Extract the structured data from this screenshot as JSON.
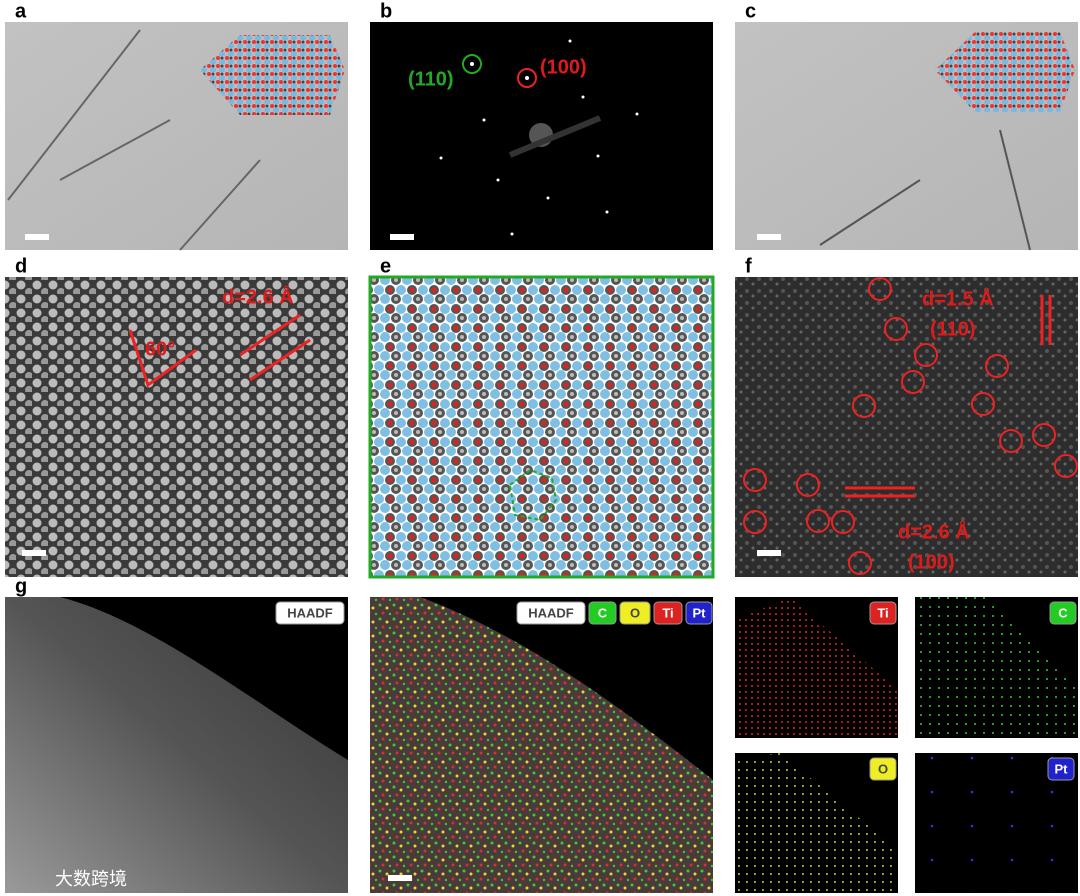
{
  "panel_labels": [
    "a",
    "b",
    "c",
    "d",
    "e",
    "f",
    "g"
  ],
  "panel_b": {
    "spot_1": "(110)",
    "spot_2": "(100)"
  },
  "panel_d": {
    "angle": "60°",
    "spacing": "d=2.6 Å"
  },
  "panel_f": {
    "spacing_1": "d=1.5 Å",
    "plane_1": "(110)",
    "spacing_2": "d=2.6 Å",
    "plane_2": "(100)"
  },
  "panel_g": {
    "haadf": "HAADF",
    "overlay_tags": [
      "HAADF",
      "C",
      "O",
      "Ti",
      "Pt"
    ],
    "maps": [
      "Ti",
      "C",
      "O",
      "Pt"
    ]
  },
  "watermark": "大数跨境"
}
